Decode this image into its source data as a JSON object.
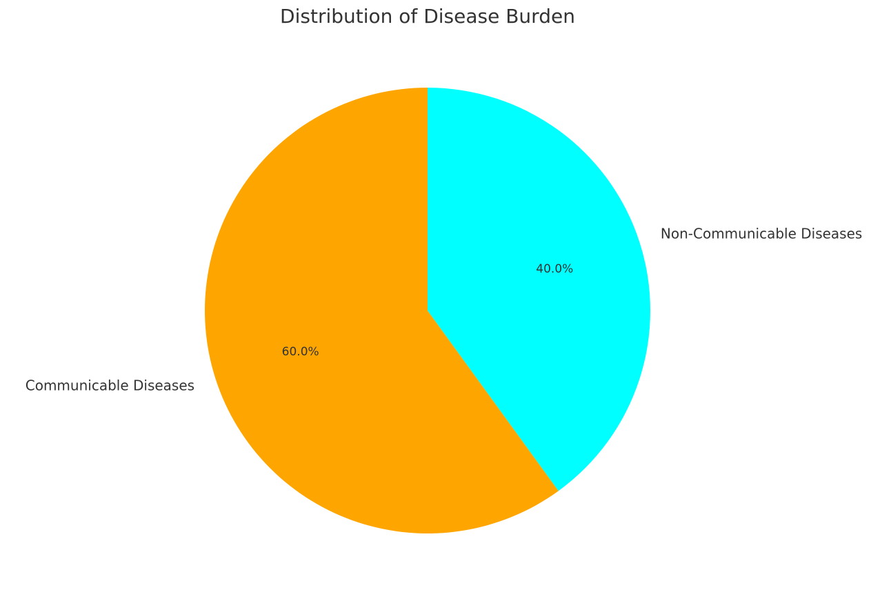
{
  "chart_data": {
    "type": "pie",
    "title": "Distribution of Disease Burden",
    "categories": [
      "Communicable Diseases",
      "Non-Communicable Diseases"
    ],
    "values": [
      60,
      40
    ],
    "value_labels": [
      "60.0%",
      "40.0%"
    ],
    "colors": [
      "#ffa500",
      "#00ffff"
    ]
  }
}
